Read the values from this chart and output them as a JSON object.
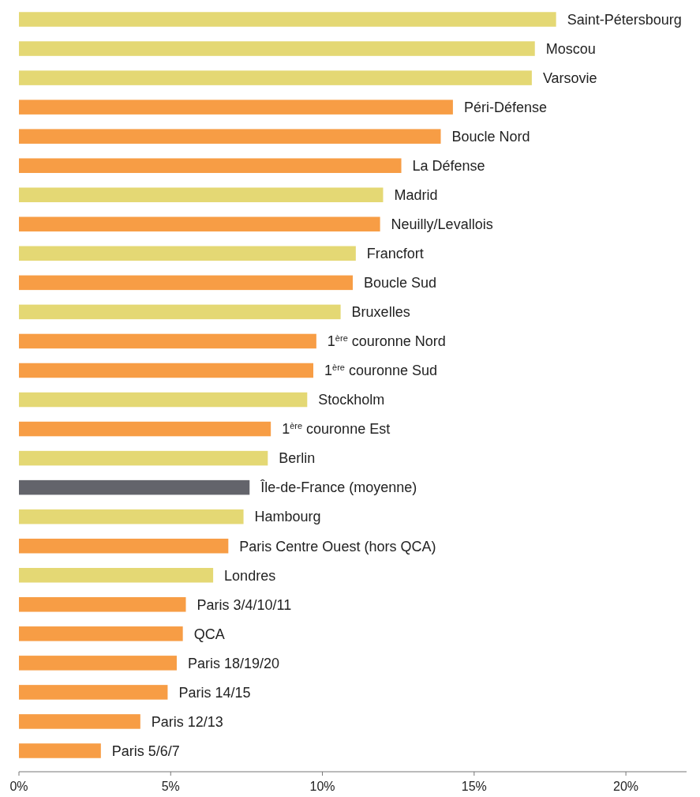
{
  "chart_data": {
    "type": "bar",
    "orientation": "horizontal",
    "categories": [
      "Saint-Pétersbourg",
      "Moscou",
      "Varsovie",
      "Péri-Défense",
      "Boucle Nord",
      "La Défense",
      "Madrid",
      "Neuilly/Levallois",
      "Francfort",
      "Boucle Sud",
      "Bruxelles",
      "1$^{ère}$ couronne Nord",
      "1$^{ère}$ couronne Sud",
      "Stockholm",
      "1$^{ère}$ couronne Est",
      "Berlin",
      "Île-de-France (moyenne)",
      "Hambourg",
      "Paris Centre Ouest (hors QCA)",
      "Londres",
      "Paris 3/4/10/11",
      "QCA",
      "Paris 18/19/20",
      "Paris 14/15",
      "Paris 12/13",
      "Paris 5/6/7"
    ],
    "values": [
      17.7,
      17.0,
      16.9,
      14.3,
      13.9,
      12.6,
      12.0,
      11.9,
      11.1,
      11.0,
      10.6,
      9.8,
      9.7,
      9.5,
      8.3,
      8.2,
      7.6,
      7.4,
      6.9,
      6.4,
      5.5,
      5.4,
      5.2,
      4.9,
      4.0,
      2.7
    ],
    "colors": [
      "#e4d874",
      "#e4d874",
      "#e4d874",
      "#f79d45",
      "#f79d45",
      "#f79d45",
      "#e4d874",
      "#f79d45",
      "#e4d874",
      "#f79d45",
      "#e4d874",
      "#f79d45",
      "#f79d45",
      "#e4d874",
      "#f79d45",
      "#e4d874",
      "#63646b",
      "#e4d874",
      "#f79d45",
      "#e4d874",
      "#f79d45",
      "#f79d45",
      "#f79d45",
      "#f79d45",
      "#f79d45",
      "#f79d45"
    ],
    "xlim": [
      0,
      22
    ],
    "xticks": [
      {
        "value": 0,
        "label": "0%"
      },
      {
        "value": 5,
        "label": "5%"
      },
      {
        "value": 10,
        "label": "10%"
      },
      {
        "value": 15,
        "label": "15%"
      },
      {
        "value": 20,
        "label": "20%"
      }
    ],
    "grid": false
  }
}
